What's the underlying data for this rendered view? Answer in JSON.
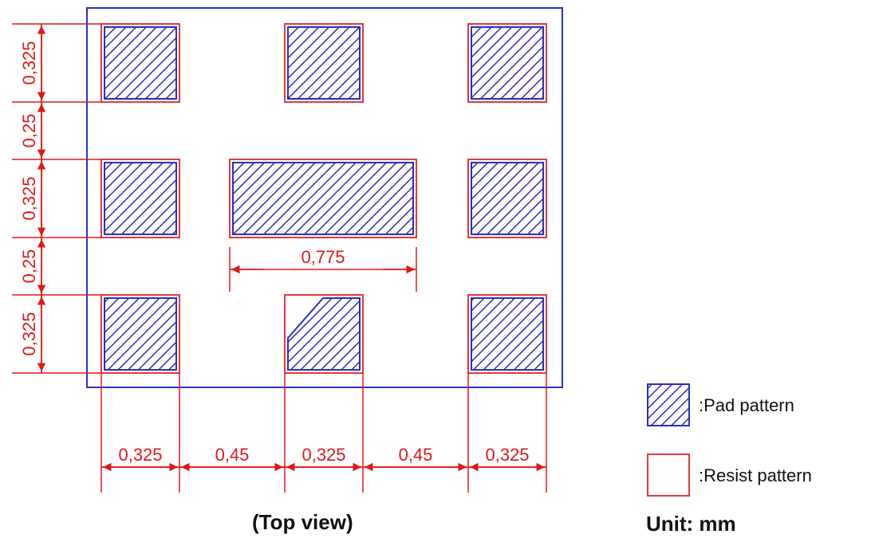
{
  "drawing": {
    "caption": "(Top view)",
    "unit_label": "Unit: mm",
    "colors": {
      "pad": "#2b2fbf",
      "resist": "#e23a3a",
      "outline": "#2b2fbf",
      "dimension": "#e01818"
    }
  },
  "dimensions": {
    "horizontal": [
      "0,325",
      "0,45",
      "0,325",
      "0,45",
      "0,325"
    ],
    "vertical": [
      "0,325",
      "0,25",
      "0,325",
      "0,25",
      "0,325"
    ],
    "center_pad_width": "0,775"
  },
  "legend": {
    "pad_label": ":Pad pattern",
    "resist_label": ":Resist pattern"
  }
}
